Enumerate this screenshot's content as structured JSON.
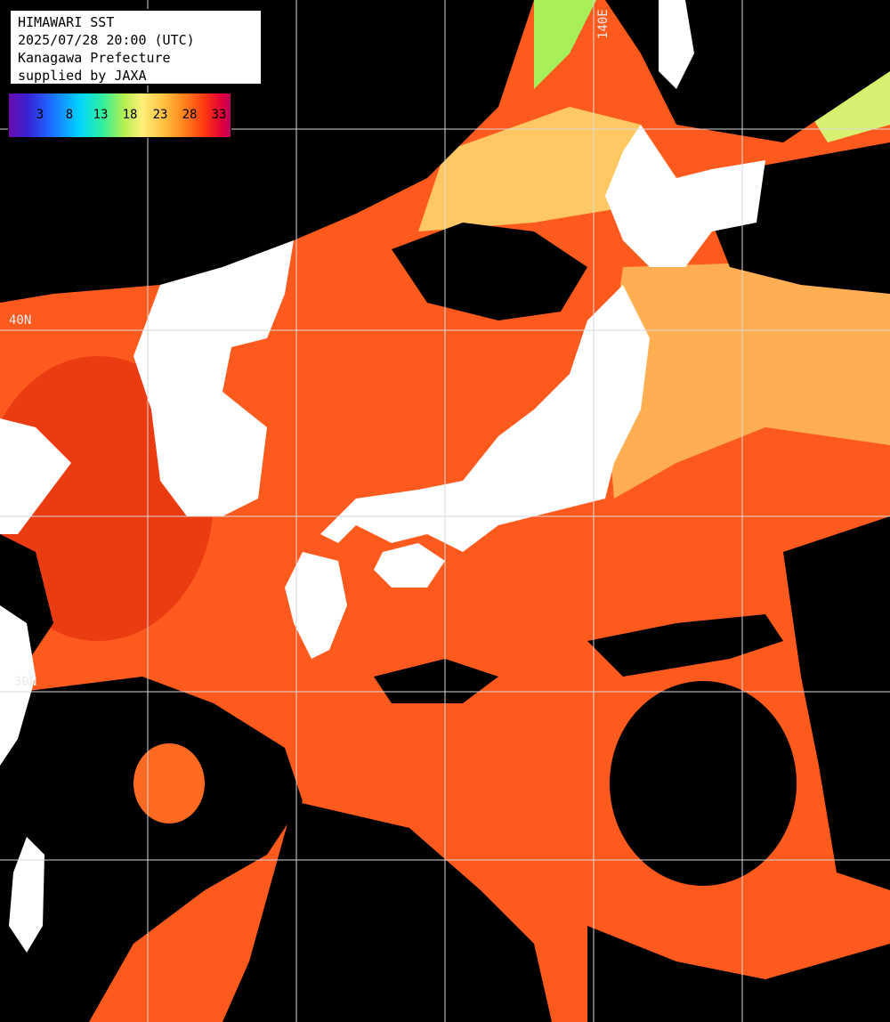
{
  "info": {
    "line1": "HIMAWARI SST",
    "line2": "2025/07/28 20:00 (UTC)",
    "line3": "Kanagawa Prefecture",
    "line4": "supplied by JAXA"
  },
  "legend": {
    "ticks": [
      "3",
      "8",
      "13",
      "18",
      "23",
      "28",
      "33"
    ]
  },
  "grid_labels": {
    "lon_140e": "140E",
    "lat_40n": "40N",
    "lat_30n": "30N"
  },
  "colors": {
    "ocean_warm": "#ff5a1e",
    "ocean_hot": "#e8300e",
    "ocean_mild": "#ffaa4a",
    "ocean_cool": "#ffd060",
    "ocean_cold": "#a8f05a",
    "land": "#ffffff",
    "cloud": "#000000",
    "gridline": "#d8d8d8"
  }
}
